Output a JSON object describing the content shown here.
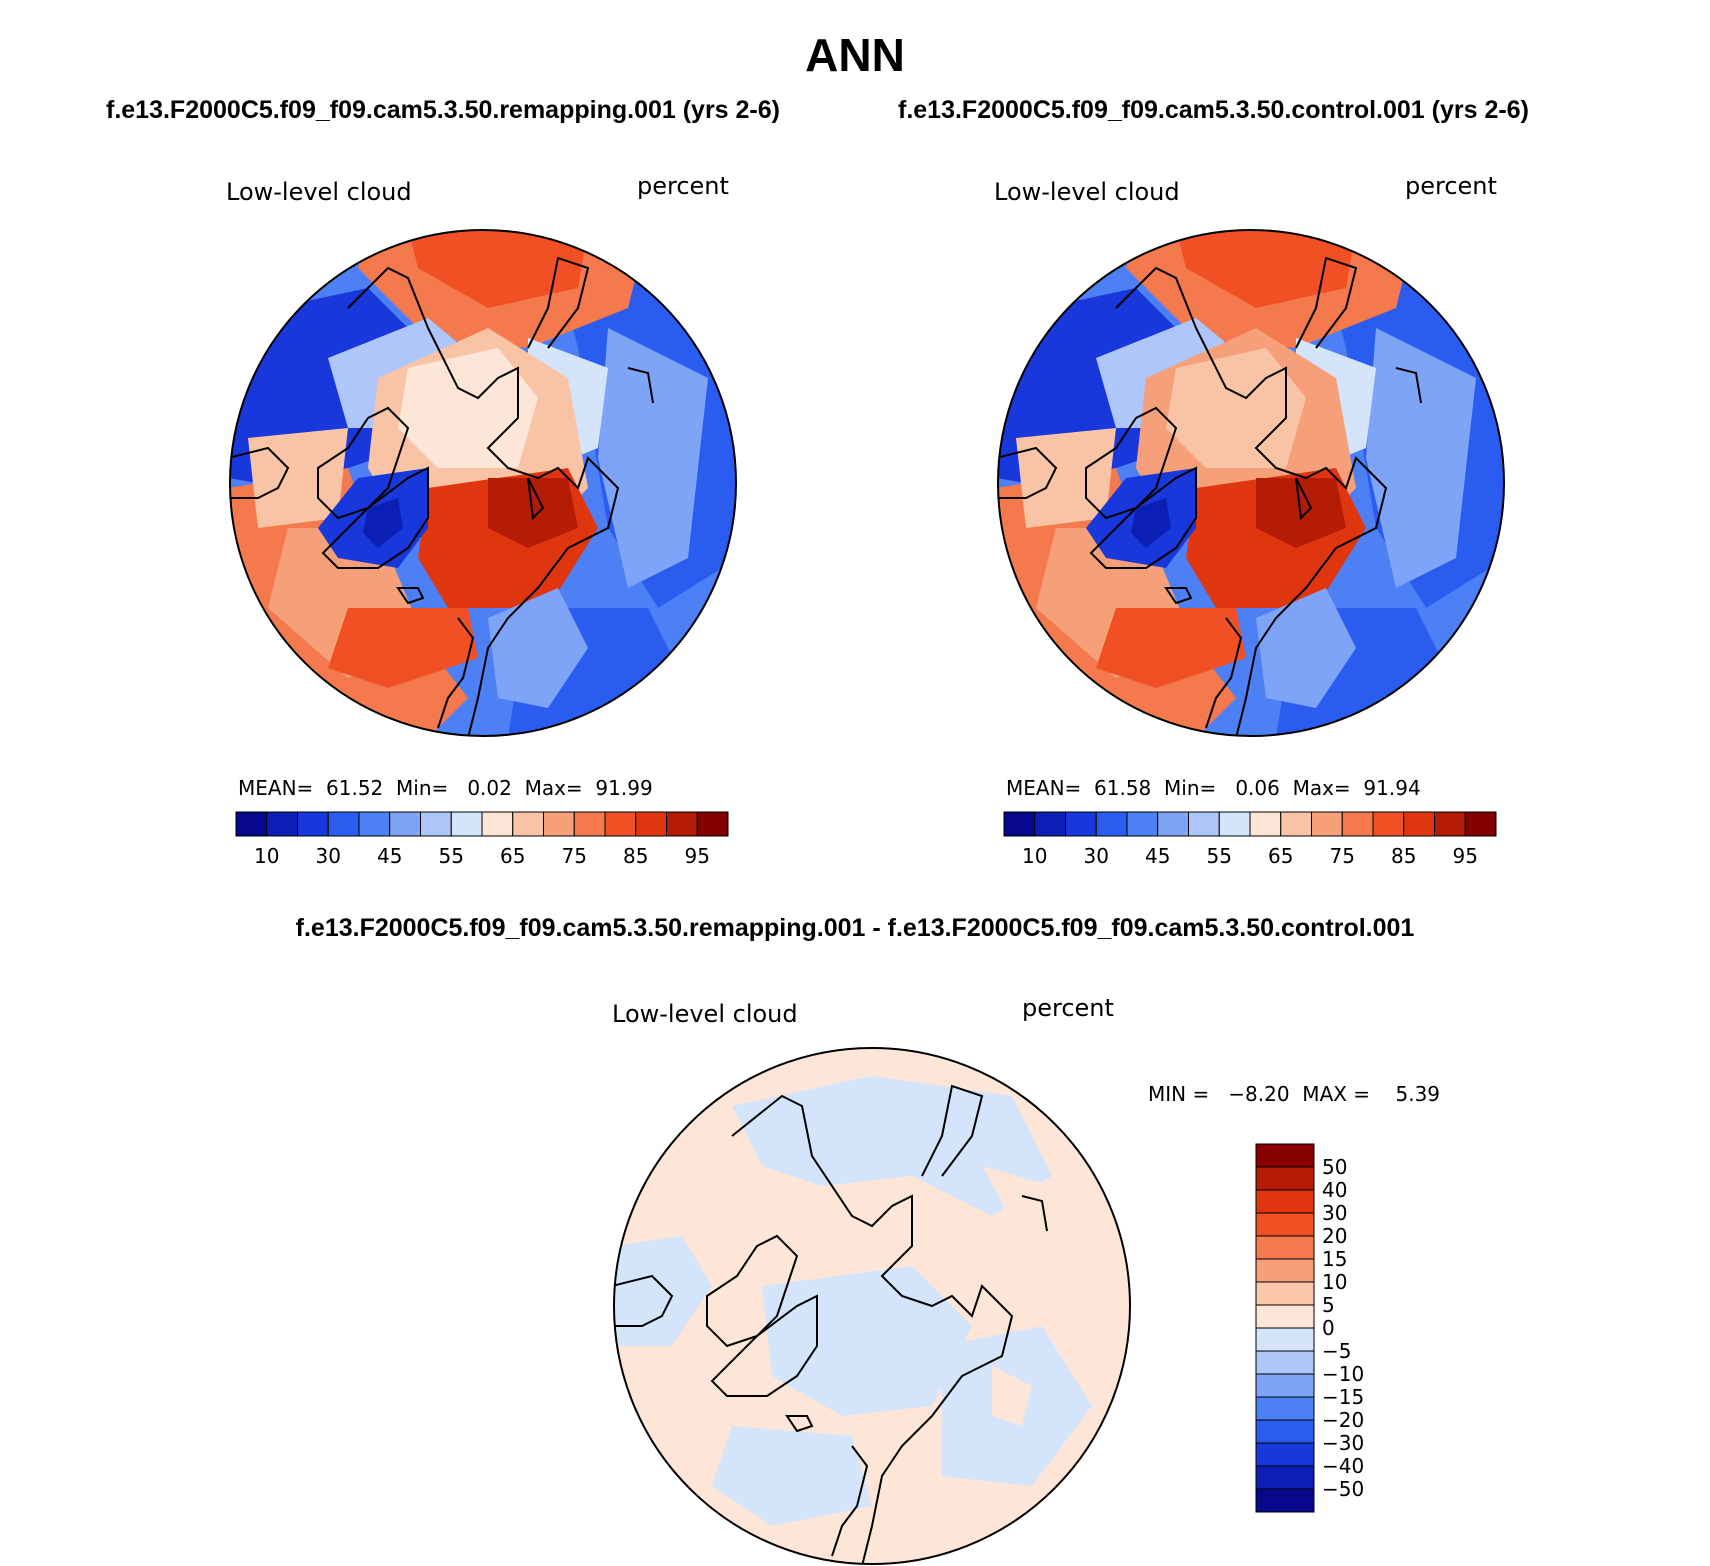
{
  "title": "ANN",
  "panels": [
    {
      "case_title": "f.e13.F2000C5.f09_f09.cam5.3.50.remapping.001 (yrs 2-6)",
      "field": "Low-level cloud",
      "units": "percent",
      "stats": {
        "mean_label": "MEAN=",
        "mean": "61.52",
        "min_label": "Min=",
        "min": "0.02",
        "max_label": "Max=",
        "max": "91.99"
      }
    },
    {
      "case_title": "f.e13.F2000C5.f09_f09.cam5.3.50.control.001 (yrs 2-6)",
      "field": "Low-level cloud",
      "units": "percent",
      "stats": {
        "mean_label": "MEAN=",
        "mean": "61.58",
        "min_label": "Min=",
        "min": "0.06",
        "max_label": "Max=",
        "max": "91.94"
      }
    }
  ],
  "colorbar_abs": {
    "colors": [
      "#08088c",
      "#0c1fb4",
      "#1838dc",
      "#2a5cf0",
      "#4c80f4",
      "#7ea4f8",
      "#aec6fa",
      "#d4e4fb",
      "#fde6d8",
      "#f9c4a6",
      "#f6a07a",
      "#f47a4e",
      "#f05024",
      "#e03610",
      "#b41c06",
      "#820000"
    ],
    "tick_labels": [
      "10",
      "30",
      "45",
      "55",
      "65",
      "75",
      "85",
      "95"
    ]
  },
  "difference": {
    "title": "f.e13.F2000C5.f09_f09.cam5.3.50.remapping.001 - f.e13.F2000C5.f09_f09.cam5.3.50.control.001",
    "field": "Low-level cloud",
    "units": "percent",
    "minmax": "MIN =   −8.20  MAX =    5.39",
    "colorbar": {
      "colors_top_to_bottom": [
        "#8a0000",
        "#b41c06",
        "#e03610",
        "#f05024",
        "#f47a4e",
        "#f6a07a",
        "#fbc8ac",
        "#fde6d8",
        "#d4e4fb",
        "#aec6fa",
        "#7ea4f8",
        "#4c80f4",
        "#2a5cf0",
        "#1838dc",
        "#0c1fb4",
        "#08088c"
      ],
      "tick_labels": [
        "50",
        "40",
        "30",
        "20",
        "15",
        "10",
        "5",
        "0",
        "−5",
        "−10",
        "−15",
        "−20",
        "−30",
        "−40",
        "−50"
      ]
    }
  }
}
